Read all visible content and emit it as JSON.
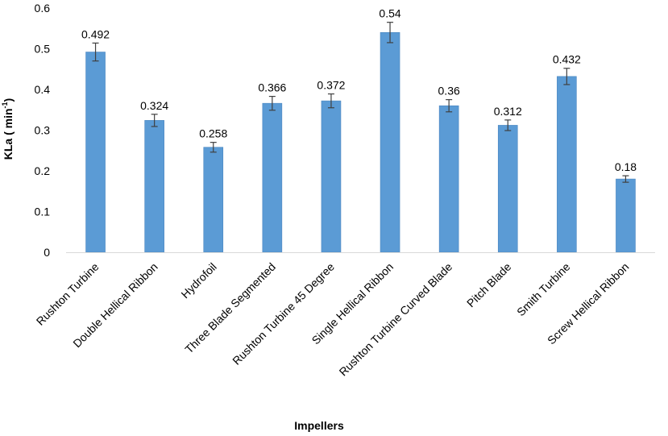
{
  "chart_data": {
    "type": "bar",
    "xlabel": "Impellers",
    "ylabel_main": "KLa ( min",
    "ylabel_sup": "-1",
    "ylabel_close": ")",
    "ylim": [
      0,
      0.6
    ],
    "yticks": [
      "0",
      "0.1",
      "0.2",
      "0.3",
      "0.4",
      "0.5",
      "0.6"
    ],
    "grid": false,
    "categories": [
      "Rushton Turbine",
      "Double Hellical Ribbon",
      "Hydrofoil",
      "Three Blade Segmented",
      "Rushton Turbine 45 Degree",
      "Single Hellical Ribbon",
      "Rushton Turbine Curved Blade",
      "Pitch Blade",
      "Smith Turbine",
      "Screw Hellical Ribbon"
    ],
    "values": [
      0.492,
      0.324,
      0.258,
      0.366,
      0.372,
      0.54,
      0.36,
      0.312,
      0.432,
      0.18
    ],
    "value_labels": [
      "0.492",
      "0.324",
      "0.258",
      "0.366",
      "0.372",
      "0.54",
      "0.36",
      "0.312",
      "0.432",
      "0.18"
    ],
    "error": [
      0.022,
      0.015,
      0.012,
      0.017,
      0.017,
      0.025,
      0.015,
      0.013,
      0.02,
      0.008
    ],
    "bar_color": "#5b9bd5",
    "bar_edge_color": "#4a86c0",
    "errorbar_color": "#404040"
  }
}
